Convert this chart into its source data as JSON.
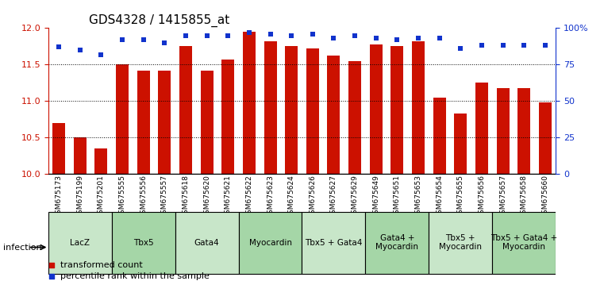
{
  "title": "GDS4328 / 1415855_at",
  "samples": [
    "GSM675173",
    "GSM675199",
    "GSM675201",
    "GSM675555",
    "GSM675556",
    "GSM675557",
    "GSM675618",
    "GSM675620",
    "GSM675621",
    "GSM675622",
    "GSM675623",
    "GSM675624",
    "GSM675626",
    "GSM675627",
    "GSM675629",
    "GSM675649",
    "GSM675651",
    "GSM675653",
    "GSM675654",
    "GSM675655",
    "GSM675656",
    "GSM675657",
    "GSM675658",
    "GSM675660"
  ],
  "bar_values": [
    10.7,
    10.5,
    10.35,
    11.5,
    11.42,
    11.42,
    11.75,
    11.42,
    11.57,
    11.95,
    11.82,
    11.75,
    11.72,
    11.62,
    11.55,
    11.78,
    11.75,
    11.82,
    11.05,
    10.83,
    11.25,
    11.18,
    11.18,
    10.98
  ],
  "percentile_values": [
    87,
    85,
    82,
    92,
    92,
    90,
    95,
    95,
    95,
    97,
    96,
    95,
    96,
    93,
    95,
    93,
    92,
    93,
    93,
    86,
    88,
    88,
    88,
    88
  ],
  "groups": [
    {
      "label": "LacZ",
      "start": 0,
      "end": 3,
      "color": "#c8e6c9"
    },
    {
      "label": "Tbx5",
      "start": 3,
      "end": 6,
      "color": "#a5d6a7"
    },
    {
      "label": "Gata4",
      "start": 6,
      "end": 9,
      "color": "#c8e6c9"
    },
    {
      "label": "Myocardin",
      "start": 9,
      "end": 12,
      "color": "#a5d6a7"
    },
    {
      "label": "Tbx5 + Gata4",
      "start": 12,
      "end": 15,
      "color": "#c8e6c9"
    },
    {
      "label": "Gata4 +\nMyocardin",
      "start": 15,
      "end": 18,
      "color": "#a5d6a7"
    },
    {
      "label": "Tbx5 +\nMyocardin",
      "start": 18,
      "end": 21,
      "color": "#c8e6c9"
    },
    {
      "label": "Tbx5 + Gata4 +\nMyocardin",
      "start": 21,
      "end": 24,
      "color": "#a5d6a7"
    }
  ],
  "ylim": [
    10.0,
    12.0
  ],
  "yticks": [
    10.0,
    10.5,
    11.0,
    11.5,
    12.0
  ],
  "bar_color": "#cc1100",
  "dot_color": "#1133cc",
  "background_color": "#ffffff",
  "grid_color": "#000000",
  "xlabel_color": "#cc1100",
  "right_axis_color": "#1133cc",
  "right_yticks": [
    0,
    25,
    50,
    75,
    100
  ],
  "right_ylim": [
    0,
    100
  ],
  "dotted_lines": [
    10.5,
    11.0,
    11.5
  ],
  "infection_label": "infection"
}
